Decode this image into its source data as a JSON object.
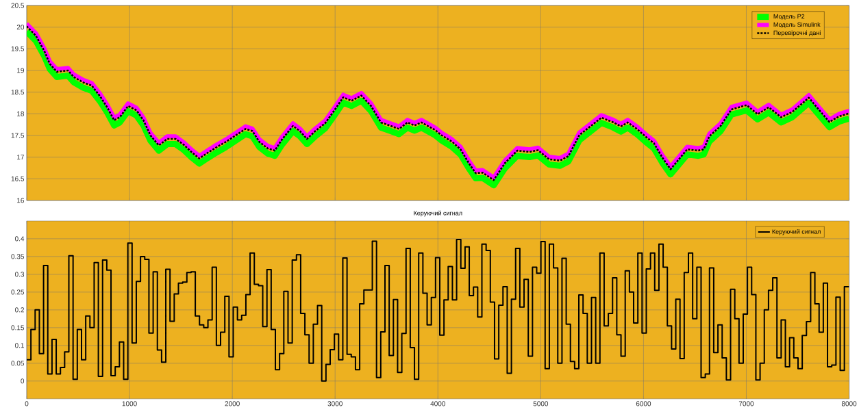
{
  "chart_data": [
    {
      "type": "line",
      "xlim": [
        0,
        8000
      ],
      "ylim": [
        16,
        20.5
      ],
      "xticks": [
        0,
        1000,
        2000,
        3000,
        4000,
        5000,
        6000,
        7000,
        8000
      ],
      "yticks": [
        16,
        16.5,
        17,
        17.5,
        18,
        18.5,
        19,
        19.5,
        20,
        20.5
      ],
      "tick_labels": "y",
      "grid": true,
      "legend": "top right",
      "x": [
        0,
        90,
        171,
        225,
        293,
        402,
        457,
        552,
        633,
        715,
        783,
        851,
        905,
        986,
        1068,
        1136,
        1204,
        1285,
        1367,
        1448,
        1530,
        1611,
        1679,
        1761,
        1842,
        1937,
        2033,
        2128,
        2196,
        2264,
        2345,
        2413,
        2481,
        2590,
        2658,
        2726,
        2807,
        2902,
        2984,
        3079,
        3160,
        3255,
        3350,
        3446,
        3541,
        3622,
        3704,
        3772,
        3840,
        3976,
        4032,
        4140,
        4220,
        4301,
        4368,
        4435,
        4543,
        4651,
        4772,
        4892,
        4973,
        5081,
        5188,
        5269,
        5376,
        5484,
        5591,
        5699,
        5780,
        5847,
        5941,
        6022,
        6102,
        6183,
        6263,
        6344,
        6425,
        6532,
        6586,
        6640,
        6747,
        6855,
        7003,
        7110,
        7218,
        7339,
        7446,
        7608,
        7715,
        7809,
        7903,
        8000
      ],
      "series": [
        {
          "name": "Модель P2",
          "color": "#00ff00",
          "values": [
            19.9,
            19.68,
            19.33,
            19.03,
            18.85,
            18.88,
            18.73,
            18.6,
            18.53,
            18.28,
            18.03,
            17.73,
            17.8,
            18.06,
            17.96,
            17.73,
            17.38,
            17.15,
            17.3,
            17.3,
            17.16,
            16.98,
            16.85,
            16.98,
            17.1,
            17.23,
            17.38,
            17.53,
            17.48,
            17.23,
            17.08,
            17.03,
            17.28,
            17.6,
            17.48,
            17.3,
            17.48,
            17.66,
            17.93,
            18.26,
            18.18,
            18.3,
            18.06,
            17.68,
            17.6,
            17.53,
            17.68,
            17.61,
            17.68,
            17.5,
            17.39,
            17.23,
            17.06,
            16.74,
            16.51,
            16.52,
            16.35,
            16.74,
            17.03,
            17,
            17.04,
            16.83,
            16.8,
            16.9,
            17.39,
            17.59,
            17.79,
            17.69,
            17.59,
            17.68,
            17.52,
            17.35,
            17.2,
            16.87,
            16.6,
            16.83,
            17.06,
            17.03,
            17.06,
            17.36,
            17.59,
            17.98,
            18.08,
            17.87,
            18.03,
            17.8,
            17.92,
            18.25,
            17.95,
            17.69,
            17.82,
            17.89
          ]
        },
        {
          "name": "Модель Simulink",
          "color": "#ff00ff",
          "values": [
            20.08,
            19.86,
            19.51,
            19.21,
            19.03,
            19.06,
            18.91,
            18.78,
            18.71,
            18.46,
            18.21,
            17.91,
            17.98,
            18.24,
            18.14,
            17.91,
            17.56,
            17.33,
            17.48,
            17.48,
            17.34,
            17.16,
            17.03,
            17.16,
            17.28,
            17.41,
            17.56,
            17.71,
            17.66,
            17.41,
            17.26,
            17.21,
            17.46,
            17.78,
            17.66,
            17.48,
            17.66,
            17.84,
            18.11,
            18.44,
            18.36,
            18.48,
            18.24,
            17.86,
            17.78,
            17.71,
            17.86,
            17.79,
            17.86,
            17.68,
            17.57,
            17.41,
            17.24,
            16.92,
            16.69,
            16.7,
            16.53,
            16.92,
            17.21,
            17.18,
            17.22,
            17.01,
            16.98,
            17.08,
            17.57,
            17.77,
            17.97,
            17.87,
            17.77,
            17.86,
            17.7,
            17.53,
            17.38,
            17.05,
            16.78,
            17.01,
            17.24,
            17.21,
            17.24,
            17.54,
            17.77,
            18.16,
            18.26,
            18.05,
            18.21,
            17.98,
            18.1,
            18.43,
            18.13,
            17.87,
            18,
            18.07
          ]
        },
        {
          "name": "Перевірочні дані",
          "color": "#000000",
          "line_style": "dotted",
          "values": [
            20.02,
            19.8,
            19.45,
            19.15,
            18.97,
            19,
            18.85,
            18.72,
            18.65,
            18.4,
            18.15,
            17.85,
            17.92,
            18.18,
            18.08,
            17.85,
            17.5,
            17.27,
            17.42,
            17.42,
            17.28,
            17.1,
            16.97,
            17.1,
            17.22,
            17.35,
            17.5,
            17.65,
            17.6,
            17.35,
            17.2,
            17.15,
            17.4,
            17.72,
            17.6,
            17.42,
            17.6,
            17.78,
            18.05,
            18.38,
            18.3,
            18.42,
            18.18,
            17.8,
            17.72,
            17.65,
            17.8,
            17.73,
            17.8,
            17.62,
            17.51,
            17.35,
            17.18,
            16.86,
            16.63,
            16.64,
            16.47,
            16.86,
            17.15,
            17.12,
            17.16,
            16.95,
            16.92,
            17.02,
            17.51,
            17.71,
            17.91,
            17.81,
            17.71,
            17.8,
            17.64,
            17.47,
            17.32,
            16.99,
            16.72,
            16.95,
            17.18,
            17.15,
            17.18,
            17.48,
            17.71,
            18.1,
            18.2,
            17.99,
            18.15,
            17.92,
            18.04,
            18.37,
            18.07,
            17.81,
            17.94,
            18.01
          ]
        }
      ]
    },
    {
      "type": "step",
      "title": "Керуючий сигнал",
      "xlim": [
        0,
        8000
      ],
      "ylim": [
        -0.05,
        0.45
      ],
      "xticks": [
        0,
        1000,
        2000,
        3000,
        4000,
        5000,
        6000,
        7000,
        8000
      ],
      "yticks": [
        0,
        0.05,
        0.1,
        0.15,
        0.2,
        0.25,
        0.3,
        0.35,
        0.4
      ],
      "grid": true,
      "legend": "top right",
      "x": [
        0,
        41,
        82,
        123,
        164,
        205,
        246,
        287,
        328,
        369,
        410,
        451,
        492,
        533,
        574,
        615,
        656,
        697,
        738,
        779,
        820,
        861,
        902,
        943,
        984,
        1025,
        1066,
        1107,
        1148,
        1189,
        1230,
        1271,
        1312,
        1353,
        1394,
        1435,
        1476,
        1517,
        1558,
        1599,
        1640,
        1681,
        1722,
        1763,
        1804,
        1845,
        1886,
        1927,
        1968,
        2009,
        2050,
        2091,
        2132,
        2173,
        2214,
        2255,
        2296,
        2337,
        2378,
        2419,
        2460,
        2501,
        2542,
        2583,
        2624,
        2665,
        2706,
        2747,
        2788,
        2829,
        2870,
        2911,
        2952,
        2993,
        3034,
        3075,
        3116,
        3157,
        3198,
        3239,
        3280,
        3321,
        3362,
        3403,
        3444,
        3485,
        3526,
        3567,
        3608,
        3649,
        3690,
        3731,
        3772,
        3813,
        3854,
        3895,
        3936,
        3977,
        4018,
        4059,
        4100,
        4141,
        4182,
        4223,
        4264,
        4305,
        4346,
        4387,
        4428,
        4469,
        4510,
        4551,
        4592,
        4633,
        4674,
        4715,
        4756,
        4797,
        4838,
        4879,
        4920,
        4961,
        5002,
        5043,
        5084,
        5125,
        5166,
        5207,
        5248,
        5289,
        5330,
        5371,
        5412,
        5453,
        5494,
        5535,
        5576,
        5617,
        5658,
        5699,
        5740,
        5781,
        5822,
        5863,
        5904,
        5945,
        5986,
        6027,
        6068,
        6109,
        6150,
        6191,
        6232,
        6273,
        6314,
        6355,
        6396,
        6437,
        6478,
        6519,
        6560,
        6601,
        6642,
        6683,
        6724,
        6765,
        6806,
        6847,
        6888,
        6929,
        6970,
        7011,
        7052,
        7093,
        7134,
        7175,
        7216,
        7257,
        7298,
        7339,
        7380,
        7421,
        7462,
        7503,
        7544,
        7585,
        7626,
        7667,
        7708,
        7749,
        7790,
        7831,
        7872,
        7913,
        7954,
        8000
      ],
      "series": [
        {
          "name": "Керуючий сигнал",
          "color": "#000000",
          "values": [
            0.06,
            0.145,
            0.2,
            0.077,
            0.325,
            0.02,
            0.117,
            0.02,
            0.038,
            0.082,
            0.352,
            0.005,
            0.145,
            0.06,
            0.183,
            0.15,
            0.333,
            0.013,
            0.34,
            0.312,
            0.015,
            0.04,
            0.11,
            0.005,
            0.388,
            0.107,
            0.28,
            0.35,
            0.342,
            0.135,
            0.307,
            0.087,
            0.053,
            0.314,
            0.168,
            0.245,
            0.275,
            0.278,
            0.305,
            0.307,
            0.183,
            0.158,
            0.15,
            0.172,
            0.32,
            0.1,
            0.137,
            0.238,
            0.068,
            0.208,
            0.172,
            0.185,
            0.243,
            0.36,
            0.272,
            0.268,
            0.153,
            0.313,
            0.145,
            0.032,
            0.077,
            0.252,
            0.107,
            0.34,
            0.355,
            0.19,
            0.13,
            0.05,
            0.16,
            0.212,
            0,
            0.047,
            0.088,
            0.132,
            0.06,
            0.346,
            0.075,
            0.068,
            0.032,
            0.217,
            0.256,
            0.256,
            0.393,
            0.01,
            0.138,
            0.325,
            0.072,
            0.229,
            0.024,
            0.134,
            0.373,
            0.094,
            0.005,
            0.36,
            0.247,
            0.158,
            0.235,
            0.347,
            0.129,
            0.228,
            0.322,
            0.228,
            0.398,
            0.317,
            0.377,
            0.24,
            0.264,
            0.18,
            0.385,
            0.367,
            0.222,
            0.062,
            0.213,
            0.265,
            0.022,
            0.23,
            0.373,
            0.208,
            0.286,
            0.07,
            0.32,
            0.303,
            0.392,
            0.035,
            0.385,
            0.318,
            0.05,
            0.345,
            0.16,
            0.055,
            0.035,
            0.242,
            0.19,
            0.05,
            0.235,
            0.05,
            0.36,
            0.155,
            0.19,
            0.29,
            0.13,
            0.07,
            0.31,
            0.25,
            0.163,
            0.36,
            0.135,
            0.315,
            0.36,
            0.255,
            0.385,
            0.32,
            0.155,
            0.09,
            0.23,
            0.063,
            0.305,
            0.36,
            0.175,
            0.32,
            0.01,
            0.02,
            0.318,
            0.08,
            0.158,
            0.065,
            0.003,
            0.258,
            0.175,
            0.05,
            0.188,
            0.32,
            0.243,
            0.003,
            0.05,
            0.2,
            0.255,
            0.29,
            0.065,
            0.172,
            0.04,
            0.122,
            0.065,
            0.035,
            0.128,
            0.167,
            0.305,
            0.217,
            0.137,
            0.275,
            0.04,
            0.045,
            0.236,
            0.03,
            0.265,
            0.265
          ]
        }
      ]
    }
  ]
}
